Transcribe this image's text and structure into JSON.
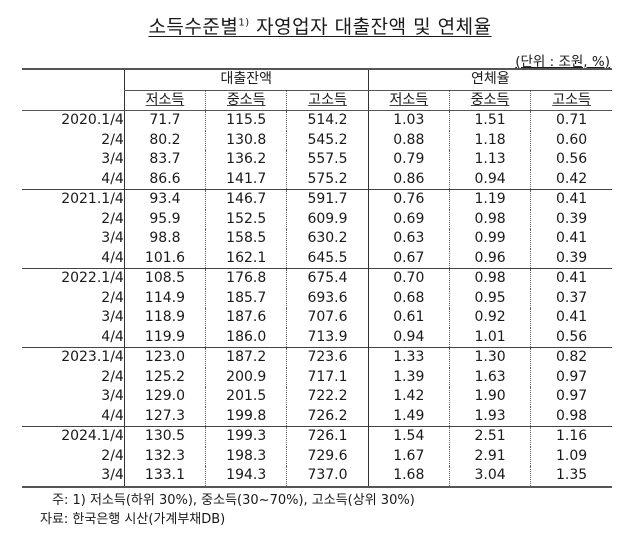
{
  "title": {
    "text": "소득수준별",
    "superscript": "1)",
    "rest": " 자영업자 대출잔액 및 연체율"
  },
  "unit": "(단위 : 조원, %)",
  "table": {
    "groups": [
      "대출잔액",
      "연체율"
    ],
    "subheaders": [
      "저소득",
      "중소득",
      "고소득",
      "저소득",
      "중소득",
      "고소득"
    ],
    "rows": [
      {
        "label": "2020.1/4",
        "values": [
          "71.7",
          "115.5",
          "514.2",
          "1.03",
          "1.51",
          "0.71"
        ]
      },
      {
        "label": "2/4",
        "values": [
          "80.2",
          "130.8",
          "545.2",
          "0.88",
          "1.18",
          "0.60"
        ]
      },
      {
        "label": "3/4",
        "values": [
          "83.7",
          "136.2",
          "557.5",
          "0.79",
          "1.13",
          "0.56"
        ]
      },
      {
        "label": "4/4",
        "values": [
          "86.6",
          "141.7",
          "575.2",
          "0.86",
          "0.94",
          "0.42"
        ]
      },
      {
        "label": "2021.1/4",
        "values": [
          "93.4",
          "146.7",
          "591.7",
          "0.76",
          "1.19",
          "0.41"
        ]
      },
      {
        "label": "2/4",
        "values": [
          "95.9",
          "152.5",
          "609.9",
          "0.69",
          "0.98",
          "0.39"
        ]
      },
      {
        "label": "3/4",
        "values": [
          "98.8",
          "158.5",
          "630.2",
          "0.63",
          "0.99",
          "0.41"
        ]
      },
      {
        "label": "4/4",
        "values": [
          "101.6",
          "162.1",
          "645.5",
          "0.67",
          "0.96",
          "0.39"
        ]
      },
      {
        "label": "2022.1/4",
        "values": [
          "108.5",
          "176.8",
          "675.4",
          "0.70",
          "0.98",
          "0.41"
        ]
      },
      {
        "label": "2/4",
        "values": [
          "114.9",
          "185.7",
          "693.6",
          "0.68",
          "0.95",
          "0.37"
        ]
      },
      {
        "label": "3/4",
        "values": [
          "118.9",
          "187.6",
          "707.6",
          "0.61",
          "0.92",
          "0.41"
        ]
      },
      {
        "label": "4/4",
        "values": [
          "119.9",
          "186.0",
          "713.9",
          "0.94",
          "1.01",
          "0.56"
        ]
      },
      {
        "label": "2023.1/4",
        "values": [
          "123.0",
          "187.2",
          "723.6",
          "1.33",
          "1.30",
          "0.82"
        ]
      },
      {
        "label": "2/4",
        "values": [
          "125.2",
          "200.9",
          "717.1",
          "1.39",
          "1.63",
          "0.97"
        ]
      },
      {
        "label": "3/4",
        "values": [
          "129.0",
          "201.5",
          "722.2",
          "1.42",
          "1.90",
          "0.97"
        ]
      },
      {
        "label": "4/4",
        "values": [
          "127.3",
          "199.8",
          "726.2",
          "1.49",
          "1.93",
          "0.98"
        ]
      },
      {
        "label": "2024.1/4",
        "values": [
          "130.5",
          "199.3",
          "726.1",
          "1.54",
          "2.51",
          "1.16"
        ]
      },
      {
        "label": "2/4",
        "values": [
          "132.3",
          "198.3",
          "729.6",
          "1.67",
          "2.91",
          "1.09"
        ]
      },
      {
        "label": "3/4",
        "values": [
          "133.1",
          "194.3",
          "737.0",
          "1.68",
          "3.04",
          "1.35"
        ]
      }
    ]
  },
  "footnote": "주: 1) 저소득(하위 30%), 중소득(30~70%), 고소득(상위 30%)",
  "source": "자료: 한국은행 시산(가계부채DB)"
}
